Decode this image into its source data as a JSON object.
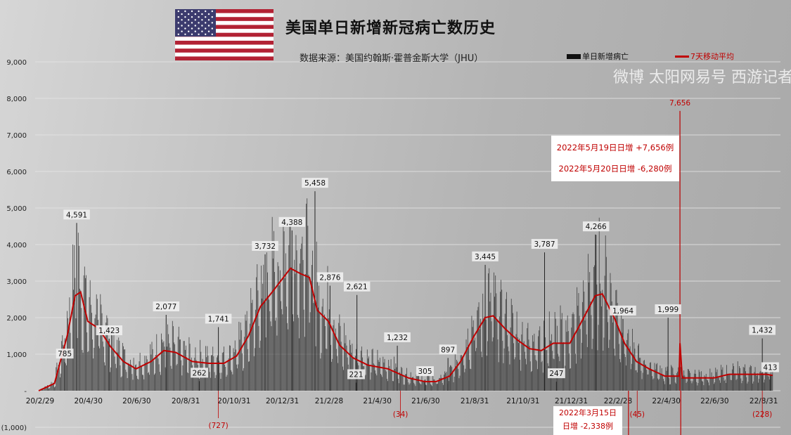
{
  "title": "美国单日新增新冠病亡数历史",
  "source": "数据来源：美国约翰斯·霍普金斯大学（JHU）",
  "watermark": "微博 太阳网易号 西游记者",
  "colors": {
    "bars": "#2a2a2a",
    "average": "#c00000",
    "annotation": "#c00000",
    "grid": "#e6e6e6"
  },
  "callouts": {
    "may19": "2022年5月19日日增 +7,656例",
    "may20": "2022年5月20日日增 -6,280例",
    "mar_date": "2022年3月15日",
    "mar_value": "日增 -2,338例"
  },
  "chart_data": {
    "type": "bar+line",
    "title": "美国单日新增新冠病亡数历史",
    "legend": [
      {
        "name": "单日新增病亡",
        "type": "bar"
      },
      {
        "name": "7天移动平均",
        "type": "line"
      }
    ],
    "legend_placement": "top-right",
    "ylim": [
      -1000,
      9000
    ],
    "yticks": [
      9000,
      8000,
      7000,
      6000,
      5000,
      4000,
      3000,
      2000,
      1000,
      0,
      -1000
    ],
    "ytick_labels": [
      "9,000",
      "8,000",
      "7,000",
      "6,000",
      "5,000",
      "4,000",
      "3,000",
      "2,000",
      "1,000",
      "-",
      "(1,000)"
    ],
    "grid": true,
    "xrange": [
      "2020-02-29",
      "2022-09-13"
    ],
    "xtick_labels": [
      {
        "date": "2020-02-29",
        "label": "20/2/29"
      },
      {
        "date": "2020-04-30",
        "label": "20/4/30"
      },
      {
        "date": "2020-06-30",
        "label": "20/6/30"
      },
      {
        "date": "2020-08-31",
        "label": "20/8/31"
      },
      {
        "date": "2020-10-31",
        "label": "20/10/31"
      },
      {
        "date": "2020-12-31",
        "label": "20/12/31"
      },
      {
        "date": "2021-02-28",
        "label": "21/2/28"
      },
      {
        "date": "2021-04-30",
        "label": "21/4/30"
      },
      {
        "date": "2021-06-30",
        "label": "21/6/30"
      },
      {
        "date": "2021-08-31",
        "label": "21/8/31"
      },
      {
        "date": "2021-10-31",
        "label": "21/10/31"
      },
      {
        "date": "2021-12-31",
        "label": "21/12/31"
      },
      {
        "date": "2022-02-28",
        "label": "22/2/28"
      },
      {
        "date": "2022-04-30",
        "label": "22/4/30"
      },
      {
        "date": "2022-06-30",
        "label": "22/6/30"
      },
      {
        "date": "2022-08-31",
        "label": "22/8/31"
      }
    ],
    "moving_average_7d": [
      [
        "2020-02-29",
        0
      ],
      [
        "2020-03-20",
        200
      ],
      [
        "2020-04-05",
        1500
      ],
      [
        "2020-04-15",
        2600
      ],
      [
        "2020-04-22",
        2700
      ],
      [
        "2020-05-01",
        1900
      ],
      [
        "2020-05-15",
        1700
      ],
      [
        "2020-05-30",
        1200
      ],
      [
        "2020-06-15",
        800
      ],
      [
        "2020-07-01",
        600
      ],
      [
        "2020-07-20",
        800
      ],
      [
        "2020-08-05",
        1100
      ],
      [
        "2020-08-20",
        1050
      ],
      [
        "2020-09-10",
        800
      ],
      [
        "2020-10-01",
        750
      ],
      [
        "2020-10-20",
        750
      ],
      [
        "2020-11-05",
        950
      ],
      [
        "2020-11-20",
        1500
      ],
      [
        "2020-12-05",
        2300
      ],
      [
        "2020-12-20",
        2700
      ],
      [
        "2021-01-12",
        3350
      ],
      [
        "2021-01-25",
        3200
      ],
      [
        "2021-02-05",
        3100
      ],
      [
        "2021-02-15",
        2200
      ],
      [
        "2021-03-01",
        1900
      ],
      [
        "2021-03-15",
        1250
      ],
      [
        "2021-04-01",
        900
      ],
      [
        "2021-04-20",
        700
      ],
      [
        "2021-05-15",
        600
      ],
      [
        "2021-06-10",
        350
      ],
      [
        "2021-07-01",
        250
      ],
      [
        "2021-07-15",
        250
      ],
      [
        "2021-08-01",
        400
      ],
      [
        "2021-08-15",
        800
      ],
      [
        "2021-09-01",
        1500
      ],
      [
        "2021-09-15",
        2000
      ],
      [
        "2021-09-25",
        2050
      ],
      [
        "2021-10-10",
        1700
      ],
      [
        "2021-10-25",
        1400
      ],
      [
        "2021-11-10",
        1150
      ],
      [
        "2021-11-25",
        1100
      ],
      [
        "2021-12-10",
        1300
      ],
      [
        "2021-12-31",
        1300
      ],
      [
        "2022-01-15",
        1900
      ],
      [
        "2022-02-01",
        2600
      ],
      [
        "2022-02-10",
        2650
      ],
      [
        "2022-02-25",
        2000
      ],
      [
        "2022-03-10",
        1300
      ],
      [
        "2022-03-25",
        800
      ],
      [
        "2022-04-10",
        600
      ],
      [
        "2022-04-30",
        400
      ],
      [
        "2022-05-18",
        400
      ],
      [
        "2022-05-19",
        1300
      ],
      [
        "2022-05-22",
        350
      ],
      [
        "2022-06-15",
        350
      ],
      [
        "2022-07-01",
        350
      ],
      [
        "2022-07-20",
        450
      ],
      [
        "2022-08-10",
        450
      ],
      [
        "2022-09-05",
        450
      ],
      [
        "2022-09-13",
        420
      ]
    ],
    "special_days": [
      {
        "date": "2022-05-19",
        "value": 7656
      },
      {
        "date": "2022-05-20",
        "value": -6280
      },
      {
        "date": "2022-03-15",
        "value": -2338
      }
    ],
    "annotations": [
      {
        "date": "2020-04-02",
        "value": 785,
        "label": "785"
      },
      {
        "date": "2020-04-17",
        "value": 4591,
        "label": "4,591"
      },
      {
        "date": "2020-05-28",
        "value": 1423,
        "label": "1,423"
      },
      {
        "date": "2020-08-08",
        "value": 2077,
        "label": "2,077"
      },
      {
        "date": "2020-09-19",
        "value": 262,
        "label": "262"
      },
      {
        "date": "2020-10-13",
        "value": 1741,
        "label": "1,741"
      },
      {
        "date": "2020-12-11",
        "value": 3732,
        "label": "3,732"
      },
      {
        "date": "2021-01-14",
        "value": 4388,
        "label": "4,388"
      },
      {
        "date": "2021-02-12",
        "value": 5458,
        "label": "5,458"
      },
      {
        "date": "2021-03-03",
        "value": 2876,
        "label": "2,876"
      },
      {
        "date": "2021-04-06",
        "value": 2621,
        "label": "2,621"
      },
      {
        "date": "2021-04-05",
        "value": 221,
        "label": "221"
      },
      {
        "date": "2021-05-27",
        "value": 1232,
        "label": "1,232"
      },
      {
        "date": "2021-07-01",
        "value": 305,
        "label": "305"
      },
      {
        "date": "2021-07-30",
        "value": 897,
        "label": "897"
      },
      {
        "date": "2021-09-15",
        "value": 3445,
        "label": "3,445"
      },
      {
        "date": "2021-11-29",
        "value": 3787,
        "label": "3,787"
      },
      {
        "date": "2021-12-14",
        "value": 247,
        "label": "247"
      },
      {
        "date": "2022-02-02",
        "value": 4266,
        "label": "4,266"
      },
      {
        "date": "2022-03-08",
        "value": 1964,
        "label": "1,964"
      },
      {
        "date": "2022-05-04",
        "value": 1999,
        "label": "1,999"
      },
      {
        "date": "2022-05-19",
        "value": 7656,
        "label": "7,656"
      },
      {
        "date": "2022-08-31",
        "value": 1432,
        "label": "1,432"
      },
      {
        "date": "2022-09-10",
        "value": 413,
        "label": "413"
      }
    ],
    "negative_annotations": [
      {
        "date": "2020-10-13",
        "value": -727,
        "label": "(727)"
      },
      {
        "date": "2021-05-31",
        "value": -34,
        "label": "(34)"
      },
      {
        "date": "2022-03-26",
        "value": -45,
        "label": "(45)"
      },
      {
        "date": "2022-08-31",
        "value": -228,
        "label": "(228)"
      }
    ]
  }
}
